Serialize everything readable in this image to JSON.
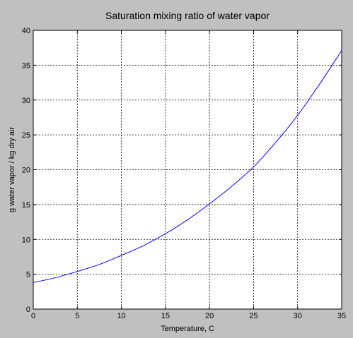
{
  "colors": {
    "figure_background": "#c0c0c0",
    "axes_background": "#ffffff",
    "axis_color": "#000000",
    "grid_color": "#000000",
    "line_color": "#0000ff"
  },
  "chart_data": {
    "type": "line",
    "title": "Saturation mixing ratio of water vapor",
    "xlabel": "Temperature, C",
    "ylabel": "g water vapor / kg dry air",
    "xlim": [
      0,
      35
    ],
    "ylim": [
      0,
      40
    ],
    "xticks": [
      0,
      5,
      10,
      15,
      20,
      25,
      30,
      35
    ],
    "yticks": [
      0,
      5,
      10,
      15,
      20,
      25,
      30,
      35,
      40
    ],
    "grid": true,
    "grid_style": "dotted",
    "series": [
      {
        "color": "#0000ff",
        "x": [
          0,
          2.5,
          5,
          7.5,
          10,
          12.5,
          15,
          17.5,
          20,
          22.5,
          25,
          27.5,
          30,
          32.5,
          35
        ],
        "y": [
          3.8,
          4.5,
          5.4,
          6.4,
          7.7,
          9.1,
          10.8,
          12.8,
          15.1,
          17.6,
          20.4,
          23.9,
          27.8,
          32.3,
          37.1
        ]
      }
    ]
  }
}
